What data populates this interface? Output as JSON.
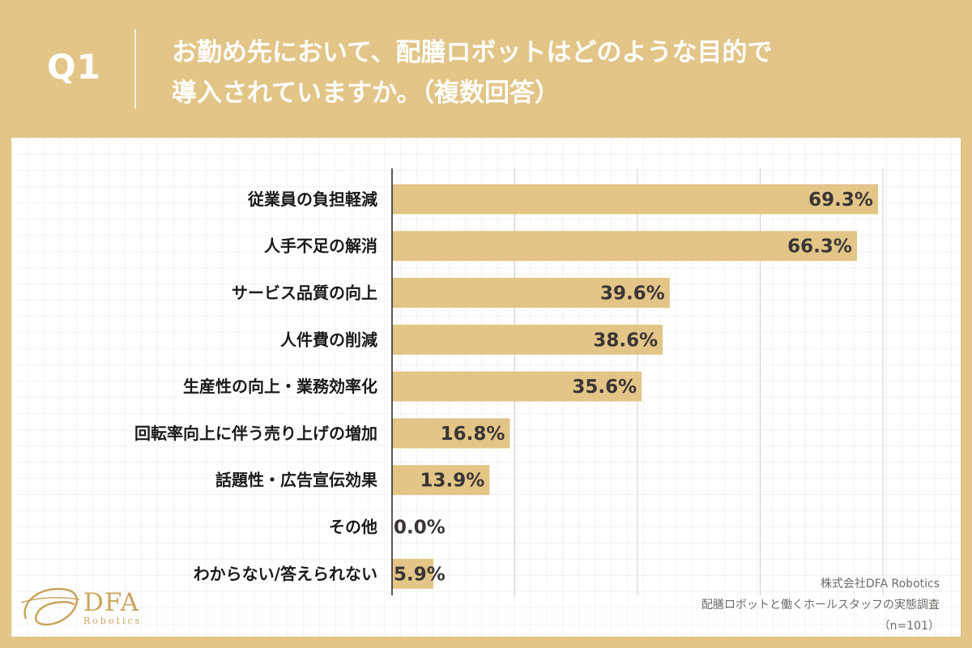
{
  "header": {
    "q_label": "Q1",
    "question_line1": "お勤め先において、配膳ロボットはどのような目的で",
    "question_line2": "導入されていますか。（複数回答）"
  },
  "chart_data": {
    "type": "bar",
    "orientation": "horizontal",
    "categories": [
      "従業員の負担軽減",
      "人手不足の解消",
      "サービス品質の向上",
      "人件費の削減",
      "生産性の向上・業務効率化",
      "回転率向上に伴う売り上げの増加",
      "話題性・広告宣伝効果",
      "その他",
      "わからない/答えられない"
    ],
    "values": [
      69.3,
      66.3,
      39.6,
      38.6,
      35.6,
      16.8,
      13.9,
      0.0,
      5.9
    ],
    "value_labels": [
      "69.3%",
      "66.3%",
      "39.6%",
      "38.6%",
      "35.6%",
      "16.8%",
      "13.9%",
      "0.0%",
      "5.9%"
    ],
    "xlim": [
      0,
      70
    ],
    "gridlines": [
      0,
      17.5,
      35,
      52.5,
      70
    ],
    "grid": true,
    "bar_color": "#e2c587",
    "unit": "%"
  },
  "logo": {
    "name": "DFA",
    "sub": "Robotics"
  },
  "source": {
    "company": "株式会社DFA Robotics",
    "survey": "配膳ロボットと働くホールスタッフの実態調査",
    "n": "（n=101）"
  },
  "colors": {
    "background": "#e2c587",
    "panel": "#ffffff",
    "accent": "#c9a55d"
  }
}
